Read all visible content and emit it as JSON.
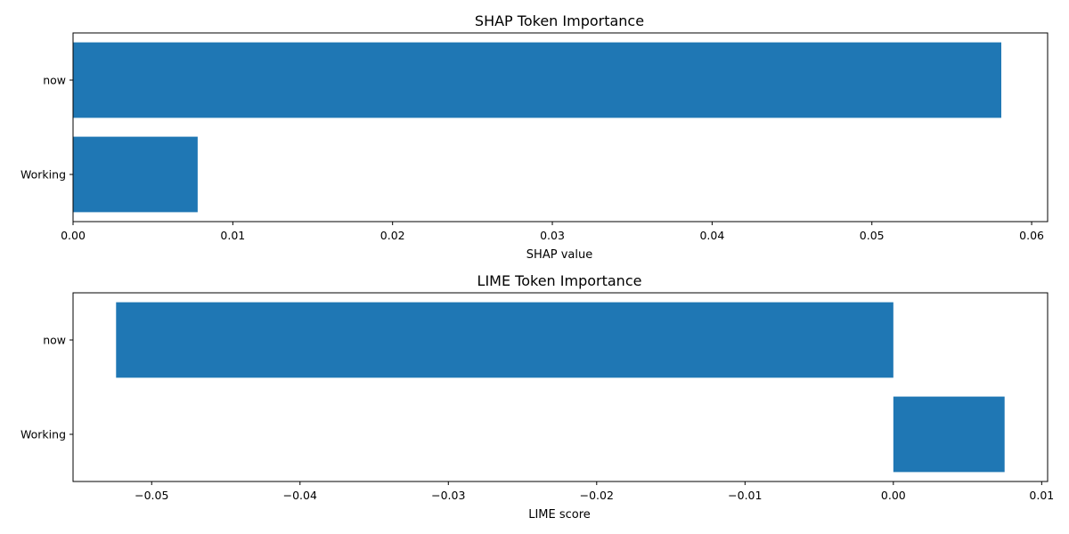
{
  "chart_data": [
    {
      "type": "bar",
      "orientation": "horizontal",
      "title": "SHAP Token Importance",
      "xlabel": "SHAP value",
      "ylabel": "",
      "categories": [
        "now",
        "Working"
      ],
      "values": [
        0.0581,
        0.0078
      ],
      "xlim": [
        0,
        0.061
      ],
      "xticks": [
        0.0,
        0.01,
        0.02,
        0.03,
        0.04,
        0.05,
        0.06
      ],
      "xtick_labels": [
        "0.00",
        "0.01",
        "0.02",
        "0.03",
        "0.04",
        "0.05",
        "0.06"
      ],
      "bar_color": "#1f77b4",
      "grid": false,
      "legend": "none"
    },
    {
      "type": "bar",
      "orientation": "horizontal",
      "title": "LIME Token Importance",
      "xlabel": "LIME score",
      "ylabel": "",
      "categories": [
        "now",
        "Working"
      ],
      "values": [
        -0.0524,
        0.0075
      ],
      "xlim": [
        -0.0553,
        0.0104
      ],
      "xticks": [
        -0.05,
        -0.04,
        -0.03,
        -0.02,
        -0.01,
        0.0,
        0.01
      ],
      "xtick_labels": [
        "−0.05",
        "−0.04",
        "−0.03",
        "−0.02",
        "−0.01",
        "0.00",
        "0.01"
      ],
      "bar_color": "#1f77b4",
      "grid": false,
      "legend": "none"
    }
  ]
}
